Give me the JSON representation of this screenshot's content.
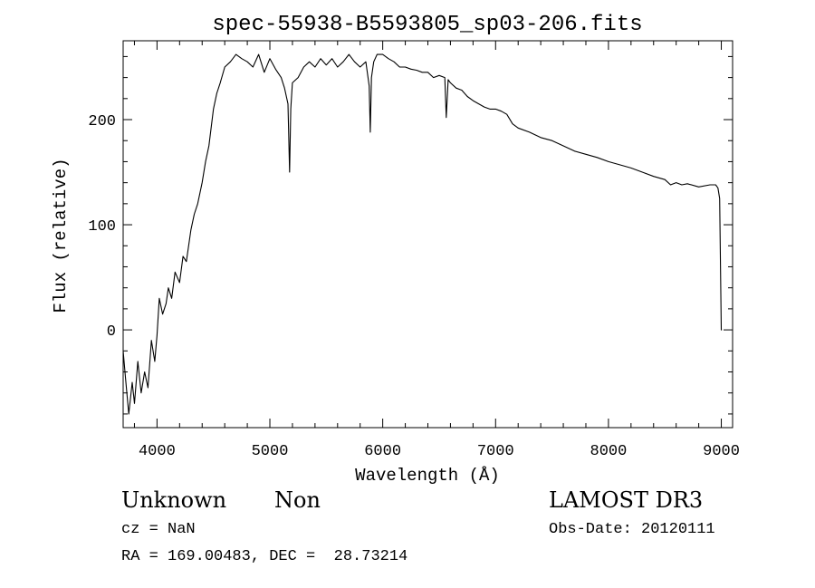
{
  "chart_data": {
    "type": "line",
    "title": "spec-55938-B5593805_sp03-206.fits",
    "xlabel": "Wavelength (Å)",
    "ylabel": "Flux (relative)",
    "xlim": [
      3700,
      9100
    ],
    "ylim": [
      -93,
      275
    ],
    "x_ticks": [
      4000,
      5000,
      6000,
      7000,
      8000,
      9000
    ],
    "x_tick_labels": [
      "4000",
      "5000",
      "6000",
      "7000",
      "8000",
      "9000"
    ],
    "y_ticks": [
      0,
      100,
      200
    ],
    "y_tick_labels": [
      "0",
      "100",
      "200"
    ],
    "grid": false,
    "line_color": "#000000",
    "series": [
      {
        "x": [
          3700,
          3720,
          3750,
          3780,
          3800,
          3830,
          3860,
          3890,
          3920,
          3950,
          3980,
          4000,
          4020,
          4050,
          4080,
          4100,
          4130,
          4160,
          4200,
          4230,
          4260,
          4300,
          4330,
          4360,
          4400,
          4430,
          4460,
          4500,
          4530,
          4560,
          4600,
          4650,
          4700,
          4750,
          4800,
          4850,
          4900,
          4950,
          5000,
          5050,
          5100,
          5130,
          5160,
          5175,
          5185,
          5200,
          5250,
          5300,
          5350,
          5400,
          5450,
          5500,
          5550,
          5600,
          5650,
          5700,
          5750,
          5800,
          5850,
          5880,
          5890,
          5900,
          5920,
          5950,
          6000,
          6050,
          6100,
          6150,
          6200,
          6250,
          6300,
          6350,
          6400,
          6450,
          6500,
          6550,
          6563,
          6580,
          6600,
          6650,
          6700,
          6750,
          6800,
          6850,
          6900,
          6950,
          7000,
          7050,
          7100,
          7150,
          7200,
          7300,
          7400,
          7500,
          7600,
          7700,
          7800,
          7900,
          8000,
          8100,
          8200,
          8300,
          8400,
          8500,
          8550,
          8600,
          8650,
          8700,
          8800,
          8900,
          8950,
          8970,
          8985,
          9000,
          9005
        ],
        "y": [
          -20,
          -45,
          -80,
          -50,
          -70,
          -30,
          -60,
          -40,
          -55,
          -10,
          -30,
          -5,
          30,
          15,
          25,
          40,
          30,
          55,
          45,
          70,
          65,
          95,
          110,
          120,
          140,
          160,
          175,
          210,
          225,
          235,
          250,
          255,
          262,
          258,
          255,
          250,
          262,
          245,
          258,
          248,
          240,
          230,
          215,
          150,
          210,
          235,
          240,
          250,
          255,
          250,
          258,
          252,
          258,
          250,
          255,
          262,
          255,
          250,
          255,
          232,
          188,
          240,
          255,
          262,
          262,
          258,
          255,
          250,
          250,
          248,
          247,
          245,
          245,
          240,
          242,
          240,
          202,
          238,
          235,
          230,
          228,
          222,
          218,
          215,
          212,
          210,
          210,
          208,
          205,
          196,
          192,
          188,
          183,
          180,
          175,
          170,
          167,
          164,
          160,
          157,
          154,
          150,
          146,
          143,
          138,
          140,
          138,
          139,
          136,
          138,
          138,
          135,
          125,
          0,
          0
        ]
      }
    ]
  },
  "info": {
    "object_type": "Unknown",
    "subclass": "Non",
    "survey": "LAMOST DR3",
    "redshift": "cz = NaN",
    "obs_date": "Obs-Date: 20120111",
    "coordinates": "RA = 169.00483, DEC =  28.73214"
  }
}
